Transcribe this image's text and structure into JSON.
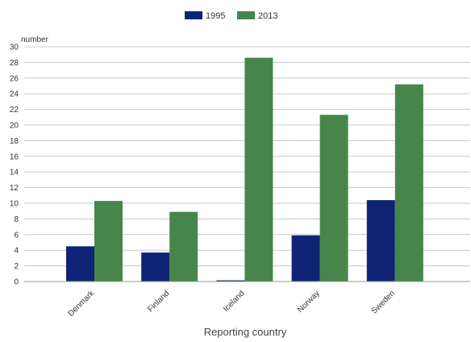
{
  "chart_data": {
    "type": "bar",
    "title": "",
    "ylabel": "number",
    "xlabel": "Reporting country",
    "categories": [
      "Denmark",
      "Finland",
      "Iceland",
      "Norway",
      "Sweden"
    ],
    "series": [
      {
        "name": "1995",
        "color": "#0f2475",
        "values": [
          4.5,
          3.7,
          0.15,
          5.9,
          10.4
        ]
      },
      {
        "name": "2013",
        "color": "#46864a",
        "values": [
          10.3,
          8.9,
          28.6,
          21.3,
          25.2
        ]
      }
    ],
    "ylim": [
      0,
      30
    ],
    "yticks": [
      0,
      2,
      4,
      6,
      8,
      10,
      12,
      14,
      16,
      18,
      20,
      22,
      24,
      26,
      28,
      30
    ],
    "grid": true,
    "legend_position": "top-center"
  }
}
